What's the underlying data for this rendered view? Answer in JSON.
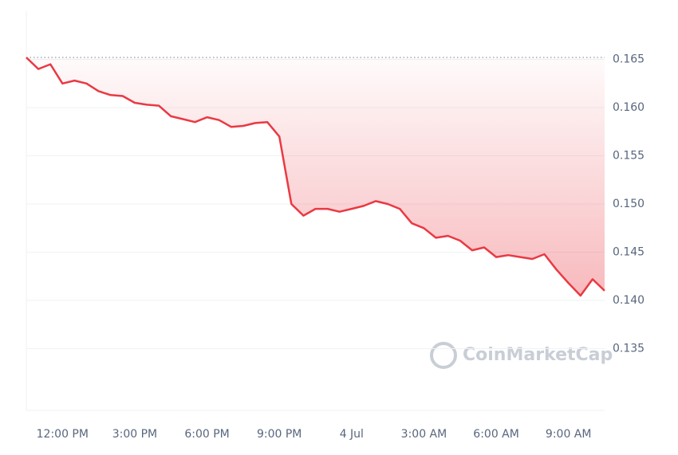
{
  "chart_data": {
    "type": "line",
    "watermark": "CoinMarketCap",
    "categories": [
      null,
      null,
      null,
      "12:00 PM",
      null,
      null,
      null,
      null,
      null,
      "3:00 PM",
      null,
      null,
      null,
      null,
      null,
      "6:00 PM",
      null,
      null,
      null,
      null,
      null,
      "9:00 PM",
      null,
      null,
      null,
      null,
      null,
      "4 Jul",
      null,
      null,
      null,
      null,
      null,
      "3:00 AM",
      null,
      null,
      null,
      null,
      null,
      "6:00 AM",
      null,
      null,
      null,
      null,
      null,
      "9:00 AM",
      null,
      null,
      null
    ],
    "series": [
      {
        "color": "#ea3943",
        "values": [
          0.1652,
          0.164,
          0.1645,
          0.1625,
          0.1628,
          0.1625,
          0.1617,
          0.1613,
          0.1612,
          0.1605,
          0.1603,
          0.1602,
          0.1591,
          0.1588,
          0.1585,
          0.159,
          0.1587,
          0.158,
          0.1581,
          0.1584,
          0.1585,
          0.157,
          0.15,
          0.1488,
          0.1495,
          0.1495,
          0.1492,
          0.1495,
          0.1498,
          0.1503,
          0.15,
          0.1495,
          0.148,
          0.1475,
          0.1465,
          0.1467,
          0.1462,
          0.1452,
          0.1455,
          0.1445,
          0.1447,
          0.1445,
          0.1443,
          0.1448,
          0.1432,
          0.1418,
          0.1405,
          0.1422,
          0.141
        ]
      }
    ],
    "ylim": [
      0.1286,
      0.17
    ],
    "yticks": [
      0.135,
      {
        "value": 0.14,
        "label": "0.140"
      },
      0.145,
      {
        "value": 0.15,
        "label": "0.150"
      },
      0.155,
      {
        "value": 0.16,
        "label": "0.160"
      },
      0.165
    ],
    "y_axis_side": "right",
    "grid": true
  }
}
